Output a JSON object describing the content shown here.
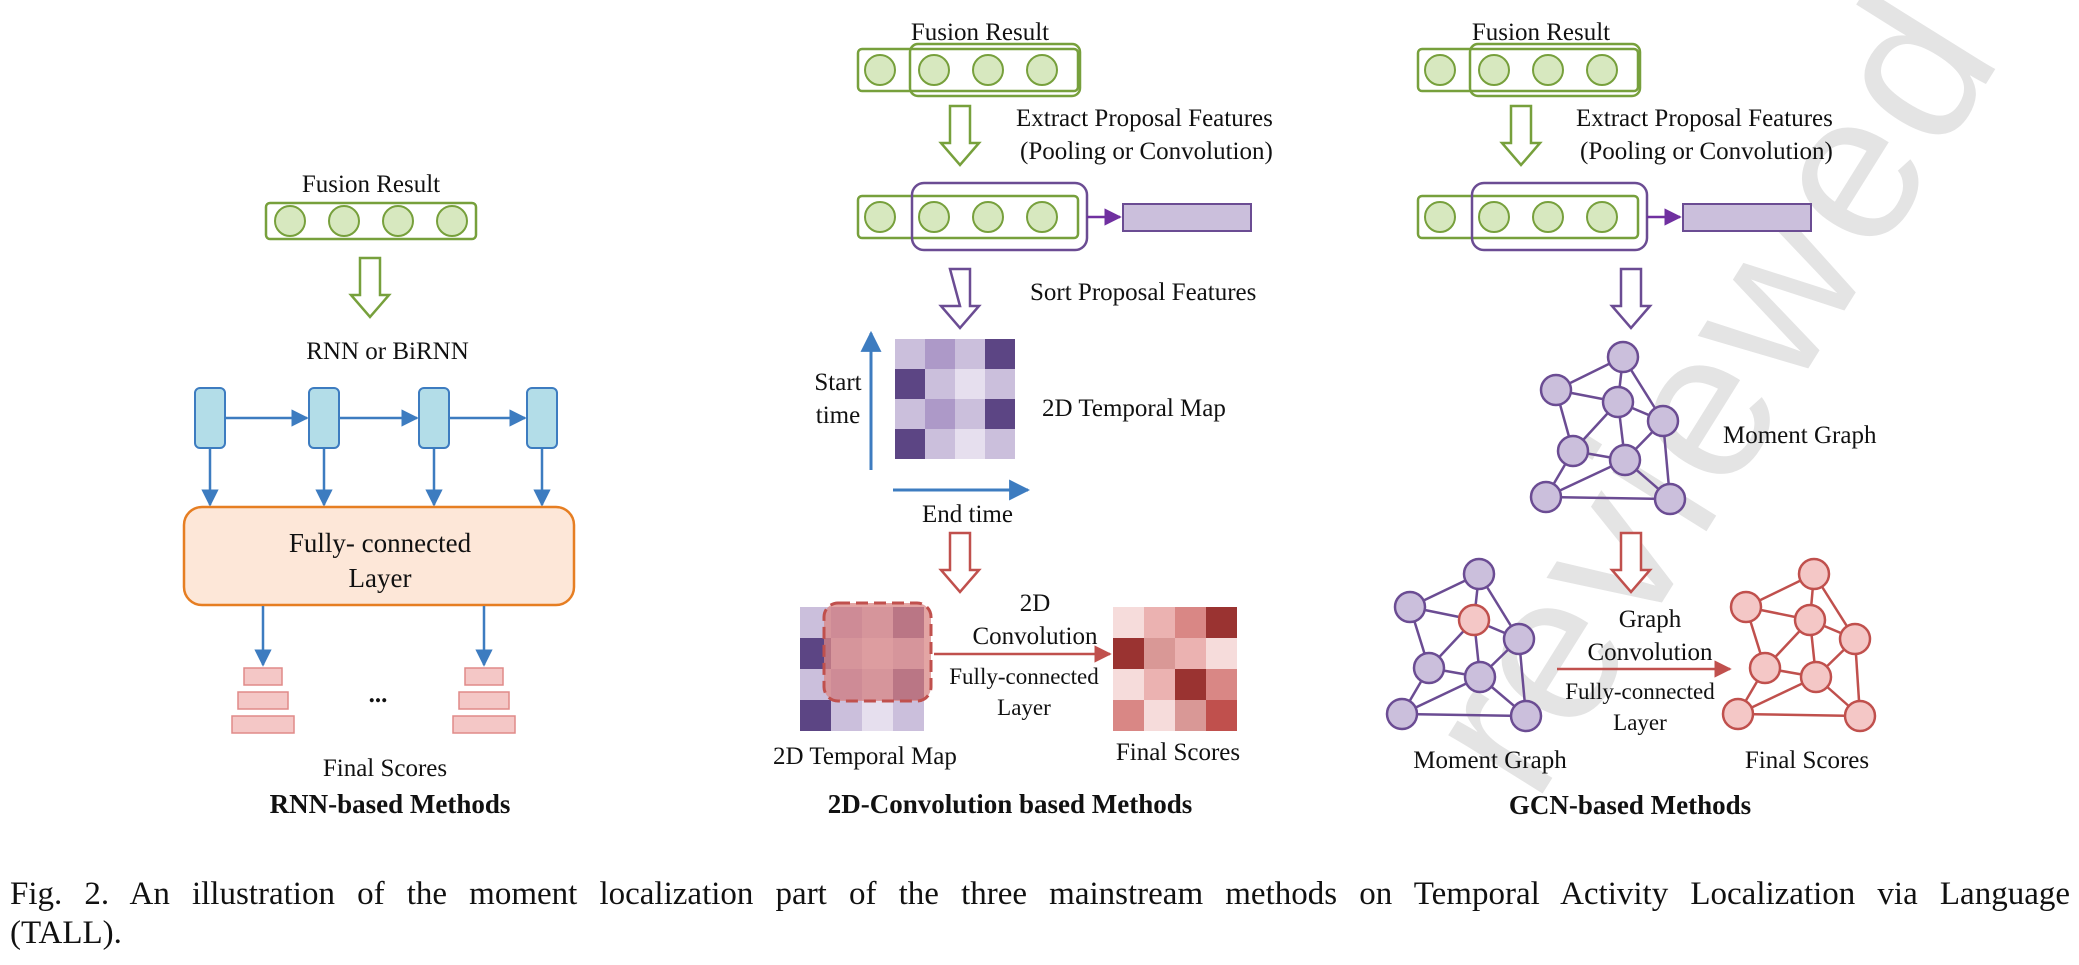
{
  "watermark": "reviewed",
  "rnn": {
    "fusion_label": "Fusion Result",
    "rnn_label": "RNN or  BiRNN",
    "fc_label": "Fully- connected Layer",
    "dots": "...",
    "final_scores": "Final Scores",
    "title": "RNN-based Methods"
  },
  "conv": {
    "fusion_label": "Fusion Result",
    "extract_label": "Extract Proposal Features",
    "extract_sub": "(Pooling or Convolution)",
    "sort_label": "Sort Proposal Features",
    "start_time": "Start time",
    "map_label": "2D   Temporal Map",
    "end_time": "End time",
    "conv_label": "2D Convolution",
    "fc_label": "Fully-connected Layer",
    "map_label_bottom": "2D   Temporal Map",
    "final_scores": "Final Scores",
    "title": "2D-Convolution based Methods"
  },
  "gcn": {
    "fusion_label": "Fusion Result",
    "extract_label": "Extract Proposal Features",
    "extract_sub": "(Pooling or Convolution)",
    "graph_label": "Moment Graph",
    "graph_conv_label": "Graph Convolution",
    "fc_label": "Fully-connected Layer",
    "moment_graph_bottom": "Moment Graph",
    "final_scores": "Final Scores",
    "title": "GCN-based Methods"
  },
  "caption": {
    "line1": "Fig. 2.  An illustration of the moment localization part of the three mainstream methods on Temporal Activity Localization via Language",
    "line2": "(TALL)."
  },
  "colors": {
    "green": "#77a03c",
    "green_fill": "#d7e8bf",
    "purple": "#6b4c93",
    "purple_fill": "#cbbfdc",
    "blue": "#3d7cc0",
    "cyan_fill": "#b3dde8",
    "orange": "#e67e22",
    "orange_fill": "#fde7d8",
    "red": "#c0504d",
    "red_fill": "#f4c7c6"
  }
}
